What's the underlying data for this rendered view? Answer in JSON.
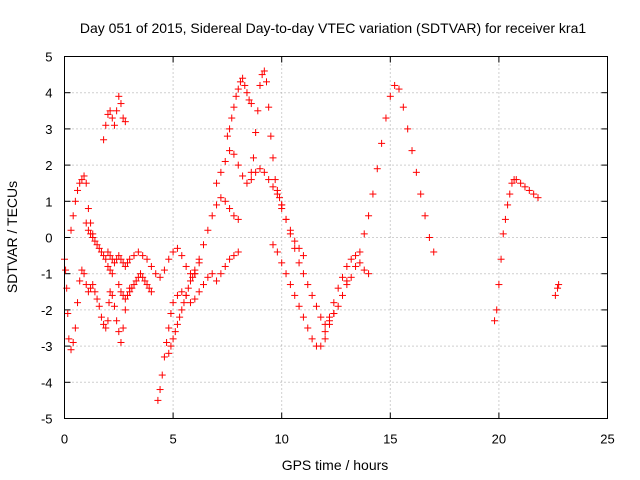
{
  "chart_data": {
    "type": "scatter",
    "title": "Day 051 of 2015, Sidereal Day-to-day VTEC variation (SDTVAR) for receiver kra1",
    "xlabel": "GPS time / hours",
    "ylabel": "SDTVAR / TECUs",
    "xlim": [
      0,
      25
    ],
    "ylim": [
      -5,
      5
    ],
    "xticks": [
      0,
      5,
      10,
      15,
      20,
      25
    ],
    "yticks": [
      -5,
      -4,
      -3,
      -2,
      -1,
      0,
      1,
      2,
      3,
      4,
      5
    ],
    "xtick_labels": [
      "0",
      "5",
      "10",
      "15",
      "20",
      "25"
    ],
    "ytick_labels": [
      "-5",
      "-4",
      "-3",
      "-2",
      "-1",
      "0",
      "1",
      "2",
      "3",
      "4",
      "5"
    ],
    "grid": true,
    "marker": "+",
    "marker_color": "#ff0000",
    "series": [
      {
        "name": "kra1",
        "x": [
          0.0,
          0.05,
          0.1,
          0.15,
          0.2,
          0.3,
          0.4,
          0.5,
          0.6,
          0.7,
          0.8,
          0.9,
          1.0,
          1.1,
          1.2,
          1.3,
          1.4,
          1.5,
          1.6,
          1.7,
          1.8,
          1.9,
          2.0,
          2.05,
          2.1,
          2.2,
          2.3,
          2.4,
          2.5,
          2.6,
          2.7,
          2.8,
          2.9,
          3.0,
          0.3,
          0.4,
          0.5,
          0.6,
          0.7,
          0.8,
          0.9,
          1.0,
          1.1,
          1.2,
          1.3,
          1.0,
          1.1,
          1.2,
          1.3,
          1.4,
          1.5,
          1.6,
          1.7,
          1.8,
          1.9,
          2.0,
          2.1,
          2.2,
          1.8,
          1.9,
          2.0,
          2.1,
          2.2,
          2.3,
          2.4,
          2.5,
          2.6,
          2.7,
          2.8,
          2.0,
          2.1,
          2.2,
          2.3,
          2.4,
          2.5,
          2.6,
          2.7,
          2.8,
          2.9,
          2.5,
          2.6,
          2.7,
          2.8,
          2.9,
          3.0,
          3.1,
          3.2,
          3.3,
          3.4,
          3.5,
          3.6,
          3.7,
          3.8,
          3.9,
          4.0,
          3.0,
          3.2,
          3.4,
          3.6,
          3.8,
          4.0,
          4.2,
          4.4,
          4.6,
          4.8,
          5.0,
          5.2,
          5.4,
          5.6,
          5.8,
          6.0,
          6.2,
          4.3,
          4.4,
          4.5,
          4.6,
          4.7,
          4.8,
          4.9,
          5.0,
          5.2,
          5.4,
          5.6,
          5.8,
          6.0,
          6.2,
          6.4,
          6.6,
          6.8,
          7.0,
          7.2,
          7.4,
          7.6,
          7.8,
          8.0,
          4.8,
          4.9,
          5.0,
          5.1,
          5.2,
          5.3,
          5.4,
          5.5,
          5.6,
          5.7,
          5.8,
          5.9,
          6.0,
          6.0,
          6.2,
          6.4,
          6.6,
          6.8,
          7.0,
          7.2,
          7.4,
          7.6,
          7.8,
          8.0,
          7.0,
          7.2,
          7.4,
          7.6,
          7.8,
          8.0,
          8.2,
          8.4,
          8.6,
          8.8,
          9.0,
          9.2,
          9.4,
          9.6,
          9.8,
          10.0,
          7.5,
          7.6,
          7.7,
          7.8,
          7.9,
          8.0,
          8.1,
          8.2,
          8.3,
          8.4,
          8.5,
          8.6,
          8.6,
          8.7,
          8.8,
          8.9,
          9.0,
          9.1,
          9.2,
          9.3,
          9.4,
          9.5,
          9.6,
          9.7,
          9.8,
          9.9,
          10.0,
          10.2,
          10.4,
          10.6,
          10.8,
          11.0,
          9.6,
          9.8,
          10.0,
          10.2,
          10.4,
          10.6,
          10.8,
          11.0,
          11.2,
          11.4,
          11.6,
          11.8,
          12.0,
          12.2,
          12.4,
          10.0,
          10.2,
          10.4,
          10.6,
          10.8,
          11.0,
          11.2,
          11.4,
          11.6,
          11.8,
          12.0,
          12.2,
          12.4,
          12.6,
          12.8,
          13.0,
          12.0,
          12.2,
          12.4,
          12.6,
          12.8,
          13.0,
          13.2,
          13.4,
          13.6,
          13.8,
          14.0,
          13.0,
          13.2,
          13.4,
          13.6,
          13.8,
          14.0,
          14.2,
          14.4,
          14.6,
          14.8,
          15.0,
          15.2,
          15.4,
          15.6,
          15.8,
          16.0,
          16.2,
          16.4,
          16.6,
          16.8,
          17.0,
          19.8,
          19.9,
          20.0,
          20.1,
          20.2,
          20.3,
          20.4,
          20.5,
          20.6,
          20.7,
          20.8,
          21.0,
          21.2,
          21.4,
          21.6,
          21.8,
          22.6,
          22.7,
          22.75
        ],
        "y": [
          -0.6,
          -0.9,
          -1.4,
          -2.1,
          -2.8,
          -3.1,
          -2.9,
          -2.5,
          -1.8,
          -1.2,
          -0.9,
          -1.0,
          -1.3,
          -1.5,
          -1.4,
          -1.3,
          -1.5,
          -1.7,
          -1.9,
          -2.2,
          -2.4,
          -2.5,
          -2.3,
          -1.8,
          -1.5,
          -1.6,
          -1.9,
          -2.3,
          -2.6,
          -2.9,
          -2.5,
          -2.0,
          -1.6,
          -1.4,
          0.2,
          0.6,
          1.0,
          1.3,
          1.5,
          1.6,
          1.7,
          1.5,
          0.8,
          0.4,
          0.1,
          0.4,
          0.2,
          0.1,
          0.0,
          -0.1,
          -0.2,
          -0.3,
          -0.4,
          -0.5,
          -0.6,
          -0.8,
          -0.9,
          -1.0,
          2.7,
          3.1,
          3.4,
          3.5,
          3.3,
          3.1,
          3.5,
          3.9,
          3.7,
          3.3,
          3.2,
          -0.4,
          -0.5,
          -0.6,
          -0.7,
          -0.6,
          -0.5,
          -0.6,
          -0.7,
          -0.8,
          -0.7,
          -1.3,
          -1.5,
          -1.6,
          -1.7,
          -1.6,
          -1.5,
          -1.4,
          -1.3,
          -1.2,
          -1.1,
          -1.0,
          -1.1,
          -1.2,
          -1.3,
          -1.4,
          -1.5,
          -0.6,
          -0.5,
          -0.4,
          -0.5,
          -0.6,
          -0.8,
          -1.0,
          -1.1,
          -0.9,
          -0.6,
          -0.4,
          -0.3,
          -0.5,
          -0.8,
          -1.0,
          -0.9,
          -0.7,
          -4.5,
          -4.2,
          -3.8,
          -3.3,
          -2.9,
          -2.5,
          -2.1,
          -1.8,
          -1.6,
          -1.5,
          -1.6,
          -1.8,
          -1.7,
          -1.5,
          -1.3,
          -1.1,
          -1.0,
          -1.2,
          -1.0,
          -0.8,
          -0.6,
          -0.5,
          -0.4,
          -3.2,
          -3.0,
          -2.8,
          -2.6,
          -2.4,
          -2.2,
          -2.0,
          -1.8,
          -1.6,
          -1.4,
          -1.2,
          -1.1,
          -1.0,
          -1.0,
          -0.6,
          -0.2,
          0.2,
          0.6,
          0.9,
          1.1,
          1.0,
          0.8,
          0.6,
          0.5,
          1.5,
          1.8,
          2.1,
          2.4,
          2.3,
          2.0,
          1.7,
          1.5,
          1.6,
          1.8,
          1.9,
          1.8,
          1.6,
          1.4,
          1.2,
          0.9,
          2.8,
          3.0,
          3.3,
          3.6,
          3.9,
          4.1,
          4.3,
          4.4,
          4.2,
          4.0,
          3.8,
          3.7,
          1.8,
          2.2,
          2.9,
          3.5,
          4.2,
          4.5,
          4.6,
          4.3,
          3.6,
          2.8,
          2.2,
          1.6,
          1.3,
          1.1,
          0.9,
          0.5,
          0.2,
          -0.1,
          -0.3,
          -0.5,
          -0.2,
          -0.4,
          -0.7,
          -1.0,
          -1.3,
          -1.6,
          -1.9,
          -2.2,
          -2.5,
          -2.8,
          -3.0,
          -3.0,
          -2.8,
          -2.4,
          -2.1,
          0.8,
          0.5,
          0.1,
          -0.3,
          -0.7,
          -1.0,
          -1.3,
          -1.6,
          -1.9,
          -2.2,
          -2.4,
          -2.3,
          -2.1,
          -1.9,
          -1.6,
          -1.2,
          -2.6,
          -2.2,
          -1.8,
          -1.4,
          -1.1,
          -0.8,
          -0.6,
          -0.5,
          -0.7,
          -0.9,
          -1.0,
          -1.3,
          -1.1,
          -0.8,
          -0.4,
          0.1,
          0.6,
          1.2,
          1.9,
          2.6,
          3.3,
          3.9,
          4.2,
          4.1,
          3.6,
          3.0,
          2.4,
          1.8,
          1.2,
          0.6,
          0.0,
          -0.4,
          -2.3,
          -2.0,
          -1.3,
          -0.6,
          0.1,
          0.5,
          0.9,
          1.2,
          1.5,
          1.6,
          1.6,
          1.5,
          1.4,
          1.3,
          1.2,
          1.1,
          -1.6,
          -1.4,
          -1.3
        ]
      }
    ]
  }
}
